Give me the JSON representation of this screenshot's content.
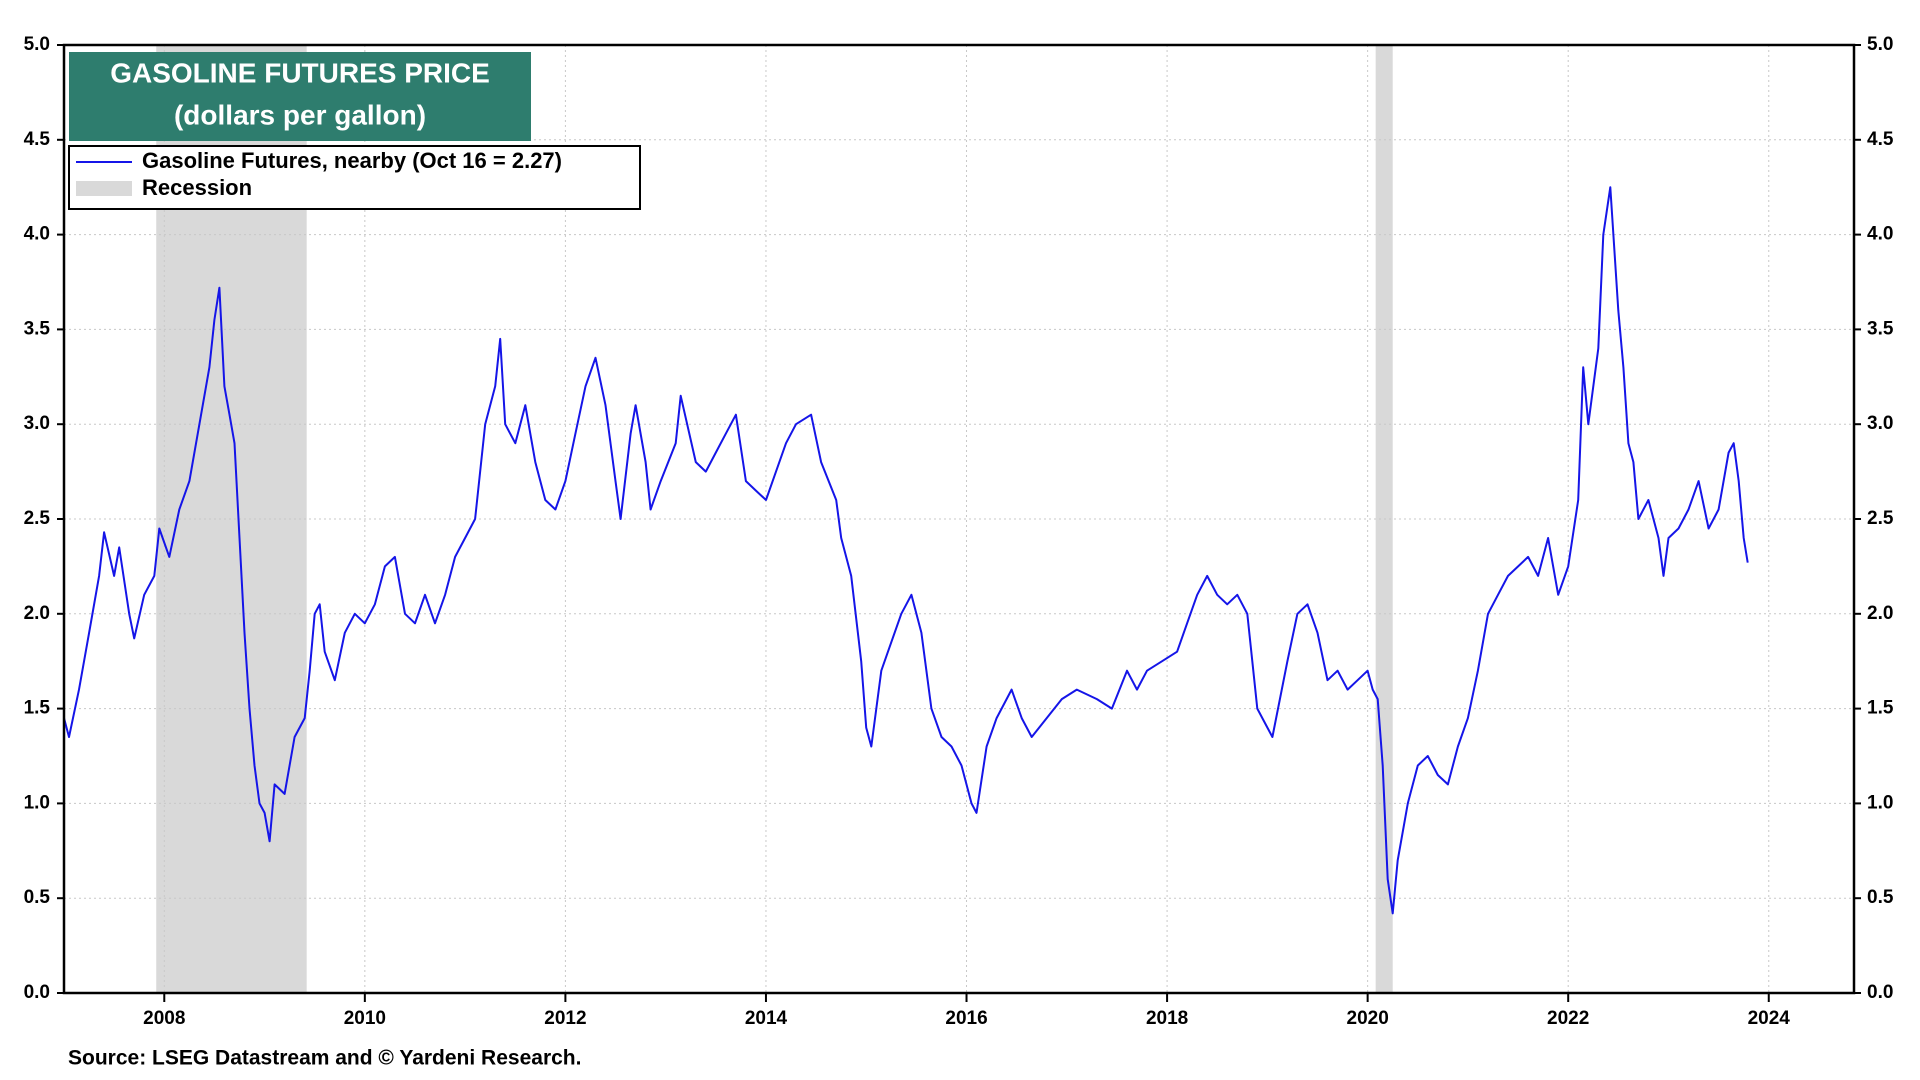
{
  "chart_data": {
    "type": "line",
    "title": "GASOLINE FUTURES PRICE",
    "subtitle": "(dollars per gallon)",
    "source": "Source: LSEG Datastream and © Yardeni Research.",
    "x": [
      2007.0,
      2007.05,
      2007.15,
      2007.25,
      2007.35,
      2007.4,
      2007.5,
      2007.55,
      2007.65,
      2007.7,
      2007.8,
      2007.9,
      2007.95,
      2008.05,
      2008.15,
      2008.25,
      2008.35,
      2008.45,
      2008.5,
      2008.55,
      2008.6,
      2008.65,
      2008.7,
      2008.75,
      2008.8,
      2008.85,
      2008.9,
      2008.95,
      2009.0,
      2009.05,
      2009.1,
      2009.2,
      2009.3,
      2009.4,
      2009.45,
      2009.5,
      2009.55,
      2009.6,
      2009.7,
      2009.8,
      2009.9,
      2010.0,
      2010.1,
      2010.2,
      2010.3,
      2010.4,
      2010.5,
      2010.6,
      2010.7,
      2010.8,
      2010.9,
      2011.0,
      2011.1,
      2011.2,
      2011.3,
      2011.35,
      2011.4,
      2011.5,
      2011.6,
      2011.7,
      2011.8,
      2011.9,
      2012.0,
      2012.1,
      2012.2,
      2012.3,
      2012.4,
      2012.5,
      2012.55,
      2012.65,
      2012.7,
      2012.8,
      2012.85,
      2012.95,
      2013.1,
      2013.15,
      2013.3,
      2013.4,
      2013.5,
      2013.6,
      2013.7,
      2013.8,
      2013.9,
      2014.0,
      2014.1,
      2014.2,
      2014.3,
      2014.45,
      2014.55,
      2014.7,
      2014.75,
      2014.85,
      2014.95,
      2015.0,
      2015.05,
      2015.15,
      2015.25,
      2015.35,
      2015.45,
      2015.55,
      2015.65,
      2015.75,
      2015.85,
      2015.95,
      2016.05,
      2016.1,
      2016.2,
      2016.3,
      2016.45,
      2016.55,
      2016.65,
      2016.8,
      2016.95,
      2017.1,
      2017.3,
      2017.45,
      2017.6,
      2017.7,
      2017.8,
      2017.95,
      2018.1,
      2018.2,
      2018.3,
      2018.4,
      2018.5,
      2018.6,
      2018.7,
      2018.8,
      2018.9,
      2019.0,
      2019.05,
      2019.2,
      2019.3,
      2019.4,
      2019.5,
      2019.6,
      2019.7,
      2019.8,
      2019.9,
      2020.0,
      2020.05,
      2020.1,
      2020.15,
      2020.2,
      2020.25,
      2020.3,
      2020.4,
      2020.5,
      2020.6,
      2020.7,
      2020.8,
      2020.9,
      2021.0,
      2021.1,
      2021.2,
      2021.3,
      2021.4,
      2021.5,
      2021.6,
      2021.7,
      2021.8,
      2021.9,
      2022.0,
      2022.1,
      2022.15,
      2022.2,
      2022.3,
      2022.35,
      2022.42,
      2022.5,
      2022.55,
      2022.6,
      2022.65,
      2022.7,
      2022.8,
      2022.9,
      2022.95,
      2023.0,
      2023.1,
      2023.2,
      2023.3,
      2023.4,
      2023.5,
      2023.6,
      2023.65,
      2023.7,
      2023.75,
      2023.79
    ],
    "series": [
      {
        "name": "Gasoline Futures, nearby (Oct 16 = 2.27)",
        "color": "#1515e8",
        "values": [
          1.45,
          1.35,
          1.6,
          1.9,
          2.2,
          2.43,
          2.2,
          2.35,
          2.0,
          1.87,
          2.1,
          2.2,
          2.45,
          2.3,
          2.55,
          2.7,
          3.0,
          3.3,
          3.55,
          3.72,
          3.2,
          3.05,
          2.9,
          2.4,
          1.9,
          1.5,
          1.2,
          1.0,
          0.95,
          0.8,
          1.1,
          1.05,
          1.35,
          1.45,
          1.7,
          2.0,
          2.05,
          1.8,
          1.65,
          1.9,
          2.0,
          1.95,
          2.05,
          2.25,
          2.3,
          2.0,
          1.95,
          2.1,
          1.95,
          2.1,
          2.3,
          2.4,
          2.5,
          3.0,
          3.2,
          3.45,
          3.0,
          2.9,
          3.1,
          2.8,
          2.6,
          2.55,
          2.7,
          2.95,
          3.2,
          3.35,
          3.1,
          2.7,
          2.5,
          2.95,
          3.1,
          2.8,
          2.55,
          2.7,
          2.9,
          3.15,
          2.8,
          2.75,
          2.85,
          2.95,
          3.05,
          2.7,
          2.65,
          2.6,
          2.75,
          2.9,
          3.0,
          3.05,
          2.8,
          2.6,
          2.4,
          2.2,
          1.75,
          1.4,
          1.3,
          1.7,
          1.85,
          2.0,
          2.1,
          1.9,
          1.5,
          1.35,
          1.3,
          1.2,
          1.0,
          0.95,
          1.3,
          1.45,
          1.6,
          1.45,
          1.35,
          1.45,
          1.55,
          1.6,
          1.55,
          1.5,
          1.7,
          1.6,
          1.7,
          1.75,
          1.8,
          1.95,
          2.1,
          2.2,
          2.1,
          2.05,
          2.1,
          2.0,
          1.5,
          1.4,
          1.35,
          1.75,
          2.0,
          2.05,
          1.9,
          1.65,
          1.7,
          1.6,
          1.65,
          1.7,
          1.6,
          1.55,
          1.2,
          0.6,
          0.42,
          0.7,
          1.0,
          1.2,
          1.25,
          1.15,
          1.1,
          1.3,
          1.45,
          1.7,
          2.0,
          2.1,
          2.2,
          2.25,
          2.3,
          2.2,
          2.4,
          2.1,
          2.25,
          2.6,
          3.3,
          3.0,
          3.4,
          4.0,
          4.25,
          3.6,
          3.3,
          2.9,
          2.8,
          2.5,
          2.6,
          2.4,
          2.2,
          2.4,
          2.45,
          2.55,
          2.7,
          2.45,
          2.55,
          2.85,
          2.9,
          2.7,
          2.4,
          2.27
        ]
      }
    ],
    "recession_name": "Recession",
    "recession_color": "#d9d9d9",
    "recessions": [
      [
        2007.92,
        2009.42
      ],
      [
        2020.08,
        2020.25
      ]
    ],
    "xlim": [
      2007.0,
      2024.85
    ],
    "xticks": [
      2008,
      2010,
      2012,
      2014,
      2016,
      2018,
      2020,
      2022,
      2024
    ],
    "ylim": [
      0,
      5
    ],
    "yticks": [
      {
        "value": 0,
        "label": "0.0"
      },
      0.5,
      {
        "value": 1,
        "label": "1.0"
      },
      1.5,
      {
        "value": 2,
        "label": "2.0"
      },
      2.5,
      {
        "value": 3,
        "label": "3.0"
      },
      3.5,
      {
        "value": 4,
        "label": "4.0"
      },
      4.5,
      {
        "value": 5,
        "label": "5.0"
      }
    ],
    "grid": true
  }
}
